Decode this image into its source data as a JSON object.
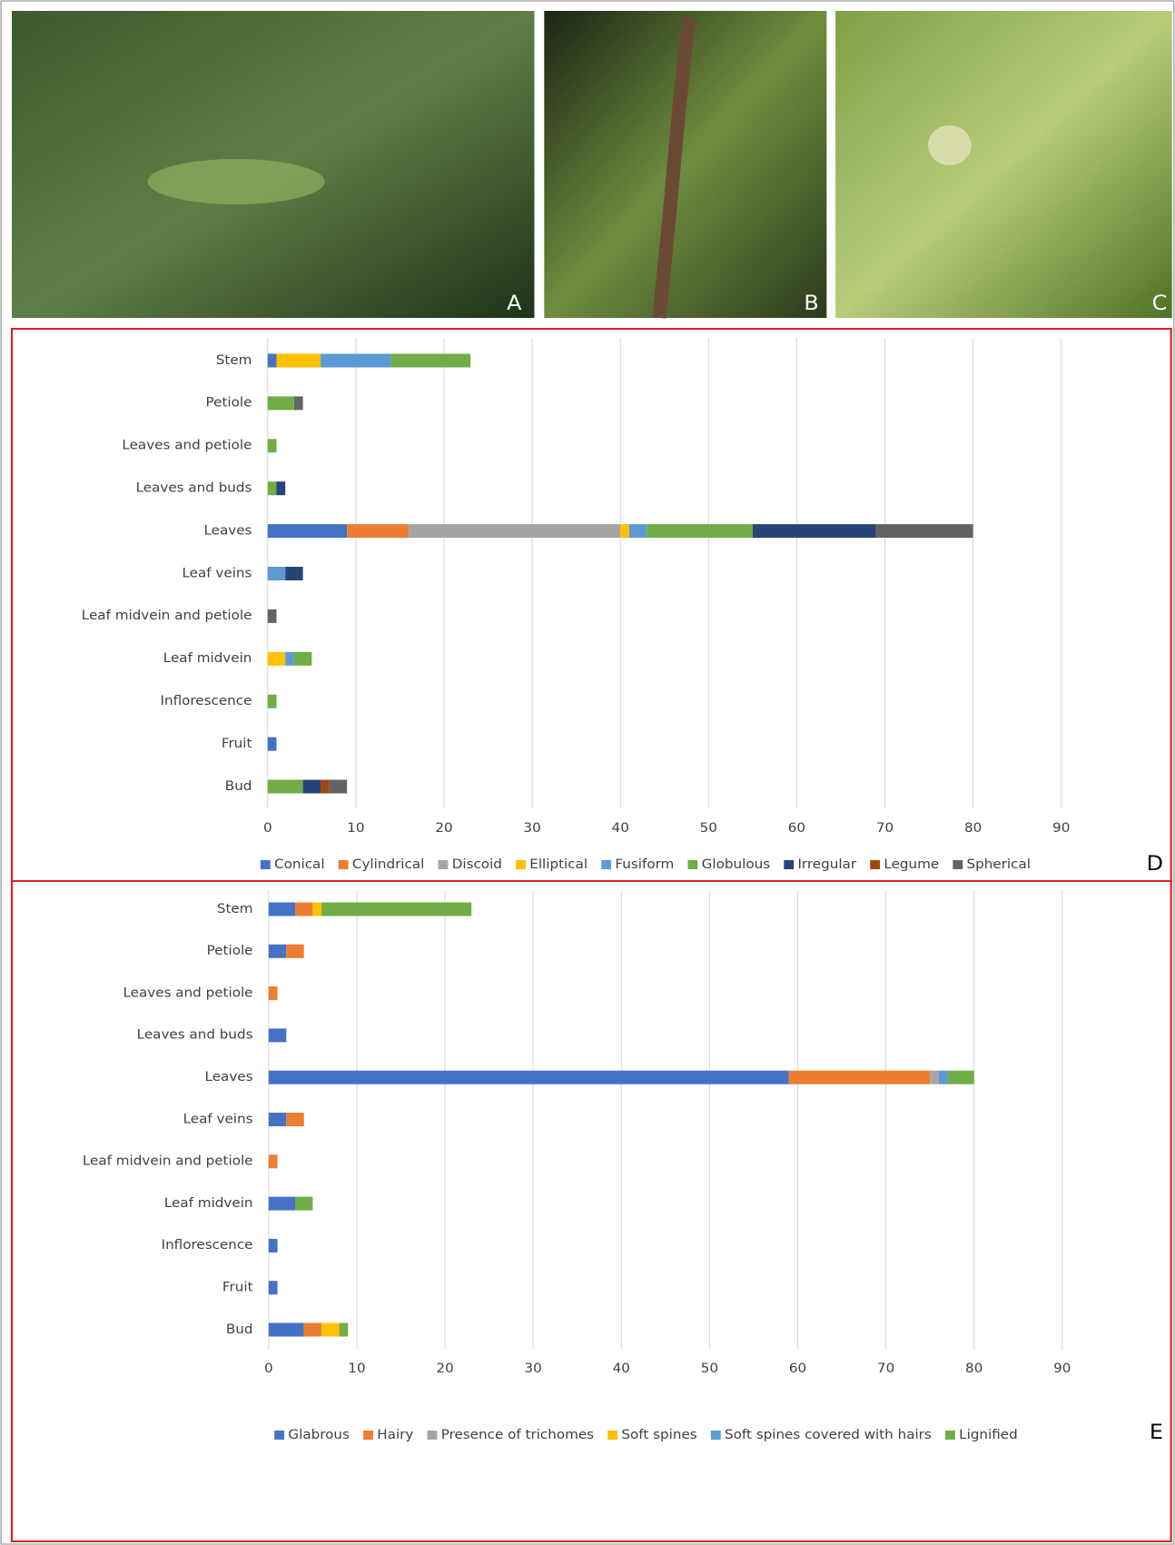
{
  "photos": [
    {
      "label": "A"
    },
    {
      "label": "B"
    },
    {
      "label": "C"
    }
  ],
  "chart_data": [
    {
      "type": "stacked-bar-horizontal",
      "panel_label": "D",
      "categories": [
        "Stem",
        "Petiole",
        "Leaves and petiole",
        "Leaves and buds",
        "Leaves",
        "Leaf veins",
        "Leaf midvein and petiole",
        "Leaf midvein",
        "Inflorescence",
        "Fruit",
        "Bud"
      ],
      "series": [
        {
          "name": "Conical",
          "color": "#4472c4",
          "values": [
            1,
            0,
            0,
            0,
            9,
            0,
            0,
            0,
            0,
            1,
            0
          ]
        },
        {
          "name": "Cylindrical",
          "color": "#ed7d31",
          "values": [
            0,
            0,
            0,
            0,
            7,
            0,
            0,
            0,
            0,
            0,
            0
          ]
        },
        {
          "name": "Discoid",
          "color": "#a5a5a5",
          "values": [
            0,
            0,
            0,
            0,
            24,
            0,
            0,
            0,
            0,
            0,
            0
          ]
        },
        {
          "name": "Elliptical",
          "color": "#ffc000",
          "values": [
            5,
            0,
            0,
            0,
            1,
            0,
            0,
            2,
            0,
            0,
            0
          ]
        },
        {
          "name": "Fusiform",
          "color": "#5b9bd5",
          "values": [
            8,
            0,
            0,
            0,
            2,
            2,
            0,
            1,
            0,
            0,
            0
          ]
        },
        {
          "name": "Globulous",
          "color": "#70ad47",
          "values": [
            9,
            3,
            1,
            1,
            12,
            0,
            0,
            2,
            1,
            0,
            4
          ]
        },
        {
          "name": "Irregular",
          "color": "#264478",
          "values": [
            0,
            0,
            0,
            1,
            14,
            2,
            0,
            0,
            0,
            0,
            2
          ]
        },
        {
          "name": "Legume",
          "color": "#9e480e",
          "values": [
            0,
            0,
            0,
            0,
            0,
            0,
            0,
            0,
            0,
            0,
            1
          ]
        },
        {
          "name": "Spherical",
          "color": "#636363",
          "values": [
            0,
            1,
            0,
            0,
            11,
            0,
            1,
            0,
            0,
            0,
            2
          ]
        }
      ],
      "xlim": [
        0,
        100
      ],
      "xticks": [
        0,
        10,
        20,
        30,
        40,
        50,
        60,
        70,
        80,
        90
      ],
      "grid": true,
      "legend": "bottom"
    },
    {
      "type": "stacked-bar-horizontal",
      "panel_label": "E",
      "categories": [
        "Stem",
        "Petiole",
        "Leaves and petiole",
        "Leaves and buds",
        "Leaves",
        "Leaf veins",
        "Leaf midvein and petiole",
        "Leaf midvein",
        "Inflorescence",
        "Fruit",
        "Bud"
      ],
      "series": [
        {
          "name": "Glabrous",
          "color": "#4472c4",
          "values": [
            3,
            2,
            0,
            2,
            59,
            2,
            0,
            3,
            1,
            1,
            4
          ]
        },
        {
          "name": "Hairy",
          "color": "#ed7d31",
          "values": [
            2,
            2,
            1,
            0,
            16,
            2,
            1,
            0,
            0,
            0,
            2
          ]
        },
        {
          "name": "Presence of trichomes",
          "color": "#a5a5a5",
          "values": [
            0,
            0,
            0,
            0,
            1,
            0,
            0,
            0,
            0,
            0,
            0
          ]
        },
        {
          "name": "Soft spines",
          "color": "#ffc000",
          "values": [
            1,
            0,
            0,
            0,
            0,
            0,
            0,
            0,
            0,
            0,
            2
          ]
        },
        {
          "name": "Soft spines covered with hairs",
          "color": "#5b9bd5",
          "values": [
            0,
            0,
            0,
            0,
            1,
            0,
            0,
            0,
            0,
            0,
            0
          ]
        },
        {
          "name": "Lignified",
          "color": "#70ad47",
          "values": [
            17,
            0,
            0,
            0,
            3,
            0,
            0,
            2,
            0,
            0,
            1
          ]
        }
      ],
      "xlim": [
        0,
        100
      ],
      "xticks": [
        0,
        10,
        20,
        30,
        40,
        50,
        60,
        70,
        80,
        90
      ],
      "grid": true,
      "legend": "bottom"
    }
  ]
}
